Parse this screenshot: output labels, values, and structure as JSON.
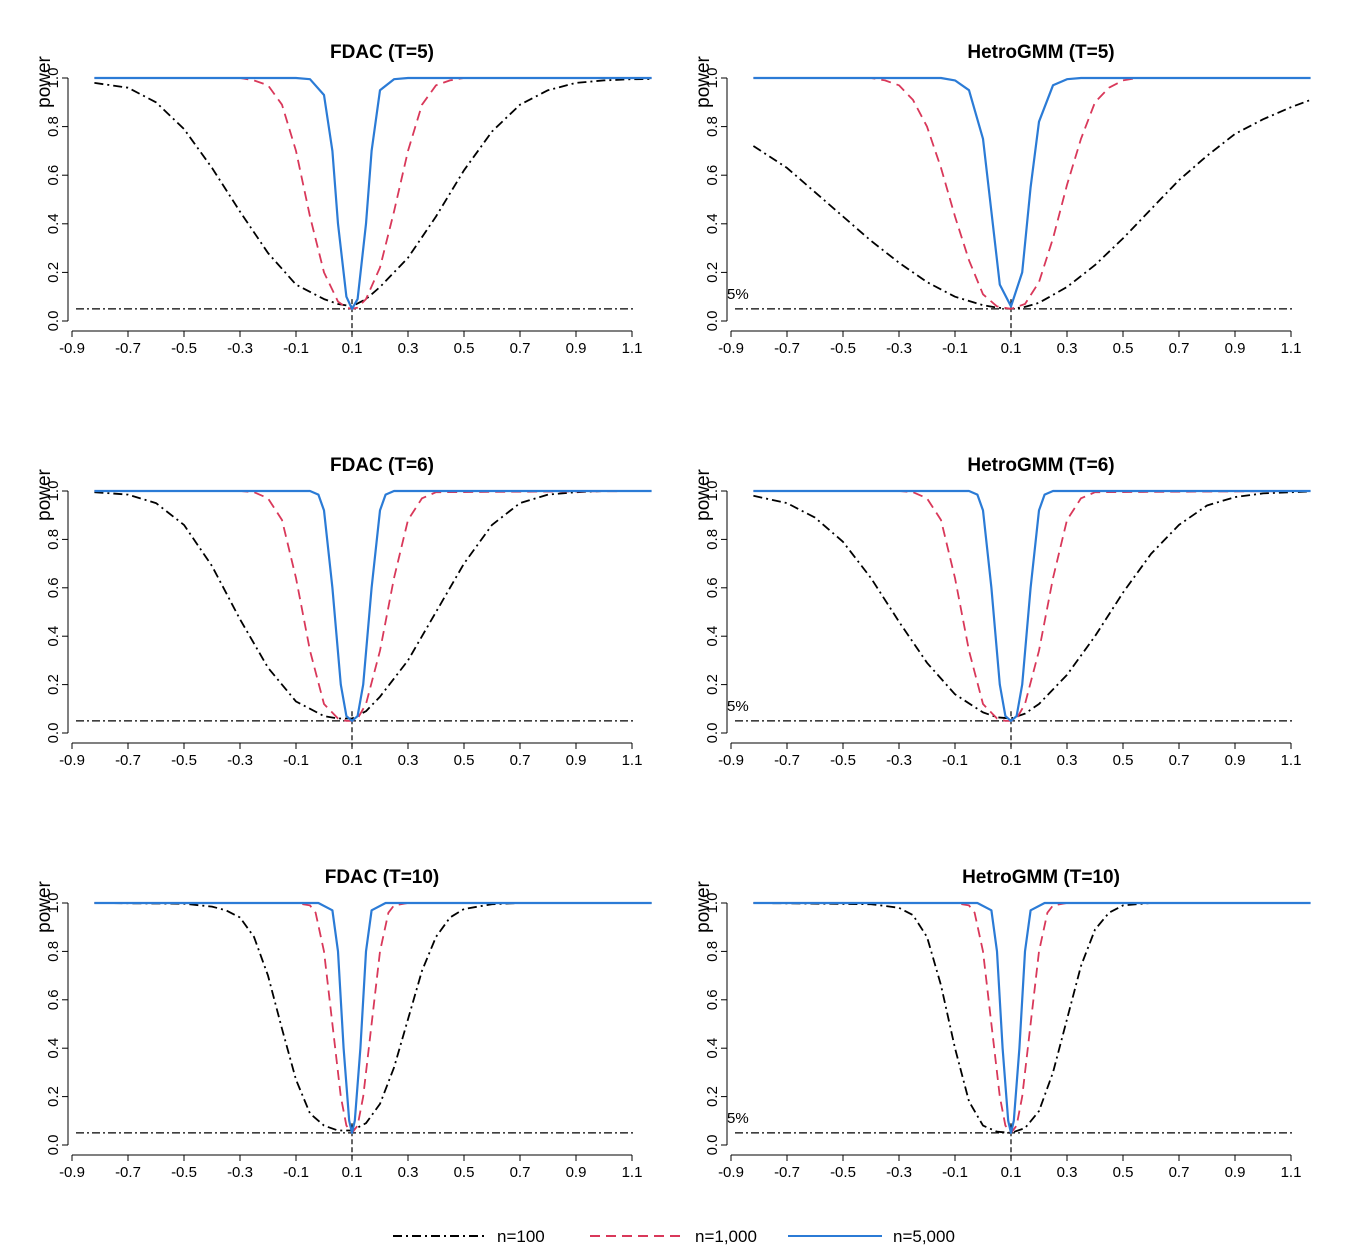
{
  "figure": {
    "x_ticks": [
      -0.9,
      -0.7,
      -0.5,
      -0.3,
      -0.1,
      0.1,
      0.3,
      0.5,
      0.7,
      0.9,
      1.1
    ],
    "x_tick_labels": [
      "-0.9",
      "-0.7",
      "-0.5",
      "-0.3",
      "-0.1",
      "0.1",
      "0.3",
      "0.5",
      "0.7",
      "0.9",
      "1.1"
    ],
    "y_ticks": [
      0,
      0.2,
      0.4,
      0.6,
      0.8,
      1.0
    ],
    "y_tick_labels": [
      "0.0",
      "0.2",
      "0.4",
      "0.6",
      "0.8",
      "1.0"
    ],
    "xlim": [
      -0.9,
      1.1
    ],
    "ylim": [
      0,
      1.0
    ],
    "reference_level": 0.05,
    "reference_label": "5%",
    "true_value": 0.1,
    "colors": {
      "n100": "#000000",
      "n1000": "#d9385a",
      "n5000": "#2b7bd6"
    }
  },
  "legend": [
    {
      "name": "n=100",
      "style": "dashdot",
      "color": "#000000"
    },
    {
      "name": "n=1,000",
      "style": "dashed",
      "color": "#d9385a"
    },
    {
      "name": "n=5,000",
      "style": "solid",
      "color": "#2b7bd6"
    }
  ],
  "chart_data": [
    {
      "type": "line",
      "title": "FDAC (T=5)",
      "ylabel": "power",
      "xlabel": "",
      "xlim": [
        -0.9,
        1.1
      ],
      "ylim": [
        0,
        1.0
      ],
      "show_5pct_label": false,
      "series": [
        {
          "name": "n=100",
          "x": [
            -0.82,
            -0.7,
            -0.6,
            -0.5,
            -0.4,
            -0.3,
            -0.2,
            -0.1,
            0.0,
            0.05,
            0.1,
            0.15,
            0.2,
            0.3,
            0.4,
            0.5,
            0.6,
            0.7,
            0.8,
            0.9,
            1.0,
            1.1,
            1.17
          ],
          "values": [
            0.98,
            0.96,
            0.9,
            0.79,
            0.63,
            0.45,
            0.28,
            0.15,
            0.09,
            0.07,
            0.06,
            0.09,
            0.14,
            0.26,
            0.43,
            0.62,
            0.78,
            0.89,
            0.95,
            0.98,
            0.99,
            0.995,
            0.996
          ]
        },
        {
          "name": "n=1,000",
          "x": [
            -0.82,
            -0.4,
            -0.3,
            -0.25,
            -0.2,
            -0.15,
            -0.1,
            -0.05,
            0.0,
            0.05,
            0.08,
            0.1,
            0.12,
            0.15,
            0.2,
            0.25,
            0.3,
            0.35,
            0.4,
            0.45,
            0.5,
            1.17
          ],
          "values": [
            1.0,
            1.0,
            1.0,
            0.99,
            0.97,
            0.89,
            0.7,
            0.43,
            0.2,
            0.08,
            0.055,
            0.05,
            0.055,
            0.09,
            0.22,
            0.45,
            0.7,
            0.89,
            0.97,
            0.99,
            1.0,
            1.0
          ]
        },
        {
          "name": "n=5,000",
          "x": [
            -0.82,
            -0.1,
            -0.05,
            0.0,
            0.03,
            0.05,
            0.08,
            0.1,
            0.12,
            0.15,
            0.17,
            0.2,
            0.25,
            0.3,
            1.17
          ],
          "values": [
            1.0,
            1.0,
            0.995,
            0.93,
            0.7,
            0.4,
            0.1,
            0.05,
            0.09,
            0.4,
            0.7,
            0.95,
            0.995,
            1.0,
            1.0
          ]
        }
      ]
    },
    {
      "type": "line",
      "title": "HetroGMM (T=5)",
      "ylabel": "power",
      "xlabel": "",
      "xlim": [
        -0.9,
        1.1
      ],
      "ylim": [
        0,
        1.0
      ],
      "show_5pct_label": true,
      "series": [
        {
          "name": "n=100",
          "x": [
            -0.82,
            -0.7,
            -0.6,
            -0.5,
            -0.4,
            -0.3,
            -0.2,
            -0.1,
            0.0,
            0.05,
            0.1,
            0.15,
            0.2,
            0.3,
            0.4,
            0.5,
            0.6,
            0.7,
            0.8,
            0.9,
            1.0,
            1.1,
            1.17
          ],
          "values": [
            0.72,
            0.63,
            0.53,
            0.43,
            0.33,
            0.24,
            0.16,
            0.1,
            0.065,
            0.055,
            0.05,
            0.058,
            0.075,
            0.14,
            0.23,
            0.34,
            0.46,
            0.58,
            0.68,
            0.77,
            0.83,
            0.88,
            0.91
          ]
        },
        {
          "name": "n=1,000",
          "x": [
            -0.82,
            -0.4,
            -0.35,
            -0.3,
            -0.25,
            -0.2,
            -0.15,
            -0.1,
            -0.05,
            0.0,
            0.05,
            0.1,
            0.15,
            0.2,
            0.25,
            0.3,
            0.35,
            0.4,
            0.45,
            0.5,
            0.55,
            1.17
          ],
          "values": [
            1.0,
            1.0,
            0.99,
            0.97,
            0.91,
            0.8,
            0.63,
            0.43,
            0.25,
            0.11,
            0.06,
            0.05,
            0.07,
            0.16,
            0.34,
            0.56,
            0.75,
            0.9,
            0.96,
            0.99,
            1.0,
            1.0
          ]
        },
        {
          "name": "n=5,000",
          "x": [
            -0.82,
            -0.15,
            -0.1,
            -0.05,
            0.0,
            0.03,
            0.06,
            0.1,
            0.14,
            0.17,
            0.2,
            0.25,
            0.3,
            0.35,
            1.17
          ],
          "values": [
            1.0,
            1.0,
            0.99,
            0.95,
            0.75,
            0.45,
            0.15,
            0.06,
            0.2,
            0.55,
            0.82,
            0.97,
            0.995,
            1.0,
            1.0
          ]
        }
      ]
    },
    {
      "type": "line",
      "title": "FDAC (T=6)",
      "ylabel": "power",
      "xlabel": "",
      "xlim": [
        -0.9,
        1.1
      ],
      "ylim": [
        0,
        1.0
      ],
      "show_5pct_label": false,
      "series": [
        {
          "name": "n=100",
          "x": [
            -0.82,
            -0.7,
            -0.6,
            -0.5,
            -0.4,
            -0.3,
            -0.2,
            -0.1,
            0.0,
            0.05,
            0.1,
            0.15,
            0.2,
            0.3,
            0.4,
            0.5,
            0.6,
            0.7,
            0.8,
            0.9,
            1.0,
            1.1,
            1.17
          ],
          "values": [
            0.995,
            0.985,
            0.95,
            0.86,
            0.69,
            0.47,
            0.27,
            0.13,
            0.07,
            0.06,
            0.06,
            0.09,
            0.15,
            0.3,
            0.5,
            0.7,
            0.86,
            0.95,
            0.985,
            0.995,
            1.0,
            1.0,
            1.0
          ]
        },
        {
          "name": "n=1,000",
          "x": [
            -0.82,
            -0.3,
            -0.25,
            -0.2,
            -0.15,
            -0.1,
            -0.05,
            0.0,
            0.05,
            0.08,
            0.1,
            0.12,
            0.15,
            0.2,
            0.25,
            0.3,
            0.35,
            0.4,
            1.17
          ],
          "values": [
            1.0,
            1.0,
            0.995,
            0.97,
            0.88,
            0.64,
            0.34,
            0.12,
            0.06,
            0.05,
            0.05,
            0.06,
            0.12,
            0.34,
            0.64,
            0.88,
            0.97,
            0.995,
            1.0
          ]
        },
        {
          "name": "n=5,000",
          "x": [
            -0.82,
            -0.05,
            -0.02,
            0.0,
            0.03,
            0.06,
            0.08,
            0.1,
            0.12,
            0.14,
            0.17,
            0.2,
            0.22,
            0.25,
            1.17
          ],
          "values": [
            1.0,
            1.0,
            0.985,
            0.92,
            0.6,
            0.2,
            0.07,
            0.05,
            0.07,
            0.2,
            0.6,
            0.92,
            0.985,
            1.0,
            1.0
          ]
        }
      ]
    },
    {
      "type": "line",
      "title": "HetroGMM (T=6)",
      "ylabel": "power",
      "xlabel": "",
      "xlim": [
        -0.9,
        1.1
      ],
      "ylim": [
        0,
        1.0
      ],
      "show_5pct_label": true,
      "series": [
        {
          "name": "n=100",
          "x": [
            -0.82,
            -0.7,
            -0.6,
            -0.5,
            -0.4,
            -0.3,
            -0.2,
            -0.1,
            0.0,
            0.05,
            0.1,
            0.15,
            0.2,
            0.3,
            0.4,
            0.5,
            0.6,
            0.7,
            0.8,
            0.9,
            1.0,
            1.1,
            1.17
          ],
          "values": [
            0.98,
            0.95,
            0.89,
            0.79,
            0.64,
            0.46,
            0.29,
            0.16,
            0.085,
            0.065,
            0.06,
            0.08,
            0.12,
            0.24,
            0.4,
            0.58,
            0.74,
            0.86,
            0.94,
            0.975,
            0.99,
            0.995,
            0.998
          ]
        },
        {
          "name": "n=1,000",
          "x": [
            -0.82,
            -0.3,
            -0.25,
            -0.2,
            -0.15,
            -0.1,
            -0.05,
            0.0,
            0.05,
            0.08,
            0.1,
            0.12,
            0.15,
            0.2,
            0.25,
            0.3,
            0.35,
            0.4,
            1.17
          ],
          "values": [
            1.0,
            1.0,
            0.995,
            0.97,
            0.88,
            0.64,
            0.34,
            0.12,
            0.06,
            0.05,
            0.05,
            0.06,
            0.12,
            0.34,
            0.64,
            0.88,
            0.97,
            0.995,
            1.0
          ]
        },
        {
          "name": "n=5,000",
          "x": [
            -0.82,
            -0.05,
            -0.02,
            0.0,
            0.03,
            0.06,
            0.08,
            0.1,
            0.12,
            0.14,
            0.17,
            0.2,
            0.22,
            0.25,
            1.17
          ],
          "values": [
            1.0,
            1.0,
            0.985,
            0.92,
            0.6,
            0.2,
            0.07,
            0.05,
            0.07,
            0.2,
            0.6,
            0.92,
            0.985,
            1.0,
            1.0
          ]
        }
      ]
    },
    {
      "type": "line",
      "title": "FDAC (T=10)",
      "ylabel": "power",
      "xlabel": "",
      "xlim": [
        -0.9,
        1.1
      ],
      "ylim": [
        0,
        1.0
      ],
      "show_5pct_label": false,
      "series": [
        {
          "name": "n=100",
          "x": [
            -0.82,
            -0.5,
            -0.4,
            -0.35,
            -0.3,
            -0.25,
            -0.2,
            -0.15,
            -0.1,
            -0.05,
            0.0,
            0.05,
            0.1,
            0.15,
            0.2,
            0.25,
            0.3,
            0.35,
            0.4,
            0.45,
            0.5,
            0.6,
            0.7,
            1.17
          ],
          "values": [
            1.0,
            0.997,
            0.985,
            0.97,
            0.94,
            0.86,
            0.7,
            0.48,
            0.27,
            0.13,
            0.08,
            0.06,
            0.06,
            0.09,
            0.17,
            0.32,
            0.52,
            0.72,
            0.86,
            0.94,
            0.975,
            0.995,
            1.0,
            1.0
          ]
        },
        {
          "name": "n=1,000",
          "x": [
            -0.82,
            -0.1,
            -0.05,
            -0.03,
            0.0,
            0.03,
            0.06,
            0.08,
            0.1,
            0.12,
            0.14,
            0.17,
            0.2,
            0.23,
            0.25,
            0.3,
            1.17
          ],
          "values": [
            1.0,
            1.0,
            0.99,
            0.96,
            0.8,
            0.5,
            0.2,
            0.08,
            0.05,
            0.08,
            0.2,
            0.5,
            0.8,
            0.96,
            0.99,
            1.0,
            1.0
          ]
        },
        {
          "name": "n=5,000",
          "x": [
            -0.82,
            -0.02,
            0.03,
            0.05,
            0.07,
            0.09,
            0.1,
            0.11,
            0.13,
            0.15,
            0.17,
            0.22,
            1.17
          ],
          "values": [
            1.0,
            1.0,
            0.97,
            0.8,
            0.4,
            0.1,
            0.05,
            0.1,
            0.4,
            0.8,
            0.97,
            1.0,
            1.0
          ]
        }
      ]
    },
    {
      "type": "line",
      "title": "HetroGMM (T=10)",
      "ylabel": "power",
      "xlabel": "",
      "xlim": [
        -0.9,
        1.1
      ],
      "ylim": [
        0,
        1.0
      ],
      "show_5pct_label": true,
      "series": [
        {
          "name": "n=100",
          "x": [
            -0.82,
            -0.4,
            -0.3,
            -0.25,
            -0.2,
            -0.15,
            -0.1,
            -0.05,
            0.0,
            0.05,
            0.1,
            0.15,
            0.2,
            0.25,
            0.3,
            0.35,
            0.4,
            0.45,
            0.5,
            0.6,
            1.17
          ],
          "values": [
            1.0,
            0.995,
            0.98,
            0.95,
            0.86,
            0.66,
            0.4,
            0.18,
            0.08,
            0.055,
            0.05,
            0.07,
            0.14,
            0.3,
            0.52,
            0.74,
            0.89,
            0.96,
            0.99,
            1.0,
            1.0
          ]
        },
        {
          "name": "n=1,000",
          "x": [
            -0.82,
            -0.1,
            -0.05,
            -0.03,
            0.0,
            0.03,
            0.06,
            0.08,
            0.1,
            0.12,
            0.14,
            0.17,
            0.2,
            0.23,
            0.25,
            0.3,
            1.17
          ],
          "values": [
            1.0,
            1.0,
            0.99,
            0.96,
            0.8,
            0.5,
            0.2,
            0.08,
            0.05,
            0.08,
            0.2,
            0.5,
            0.8,
            0.96,
            0.99,
            1.0,
            1.0
          ]
        },
        {
          "name": "n=5,000",
          "x": [
            -0.82,
            -0.02,
            0.03,
            0.05,
            0.07,
            0.09,
            0.1,
            0.11,
            0.13,
            0.15,
            0.17,
            0.22,
            1.17
          ],
          "values": [
            1.0,
            1.0,
            0.97,
            0.8,
            0.4,
            0.1,
            0.05,
            0.1,
            0.4,
            0.8,
            0.97,
            1.0,
            1.0
          ]
        }
      ]
    }
  ]
}
